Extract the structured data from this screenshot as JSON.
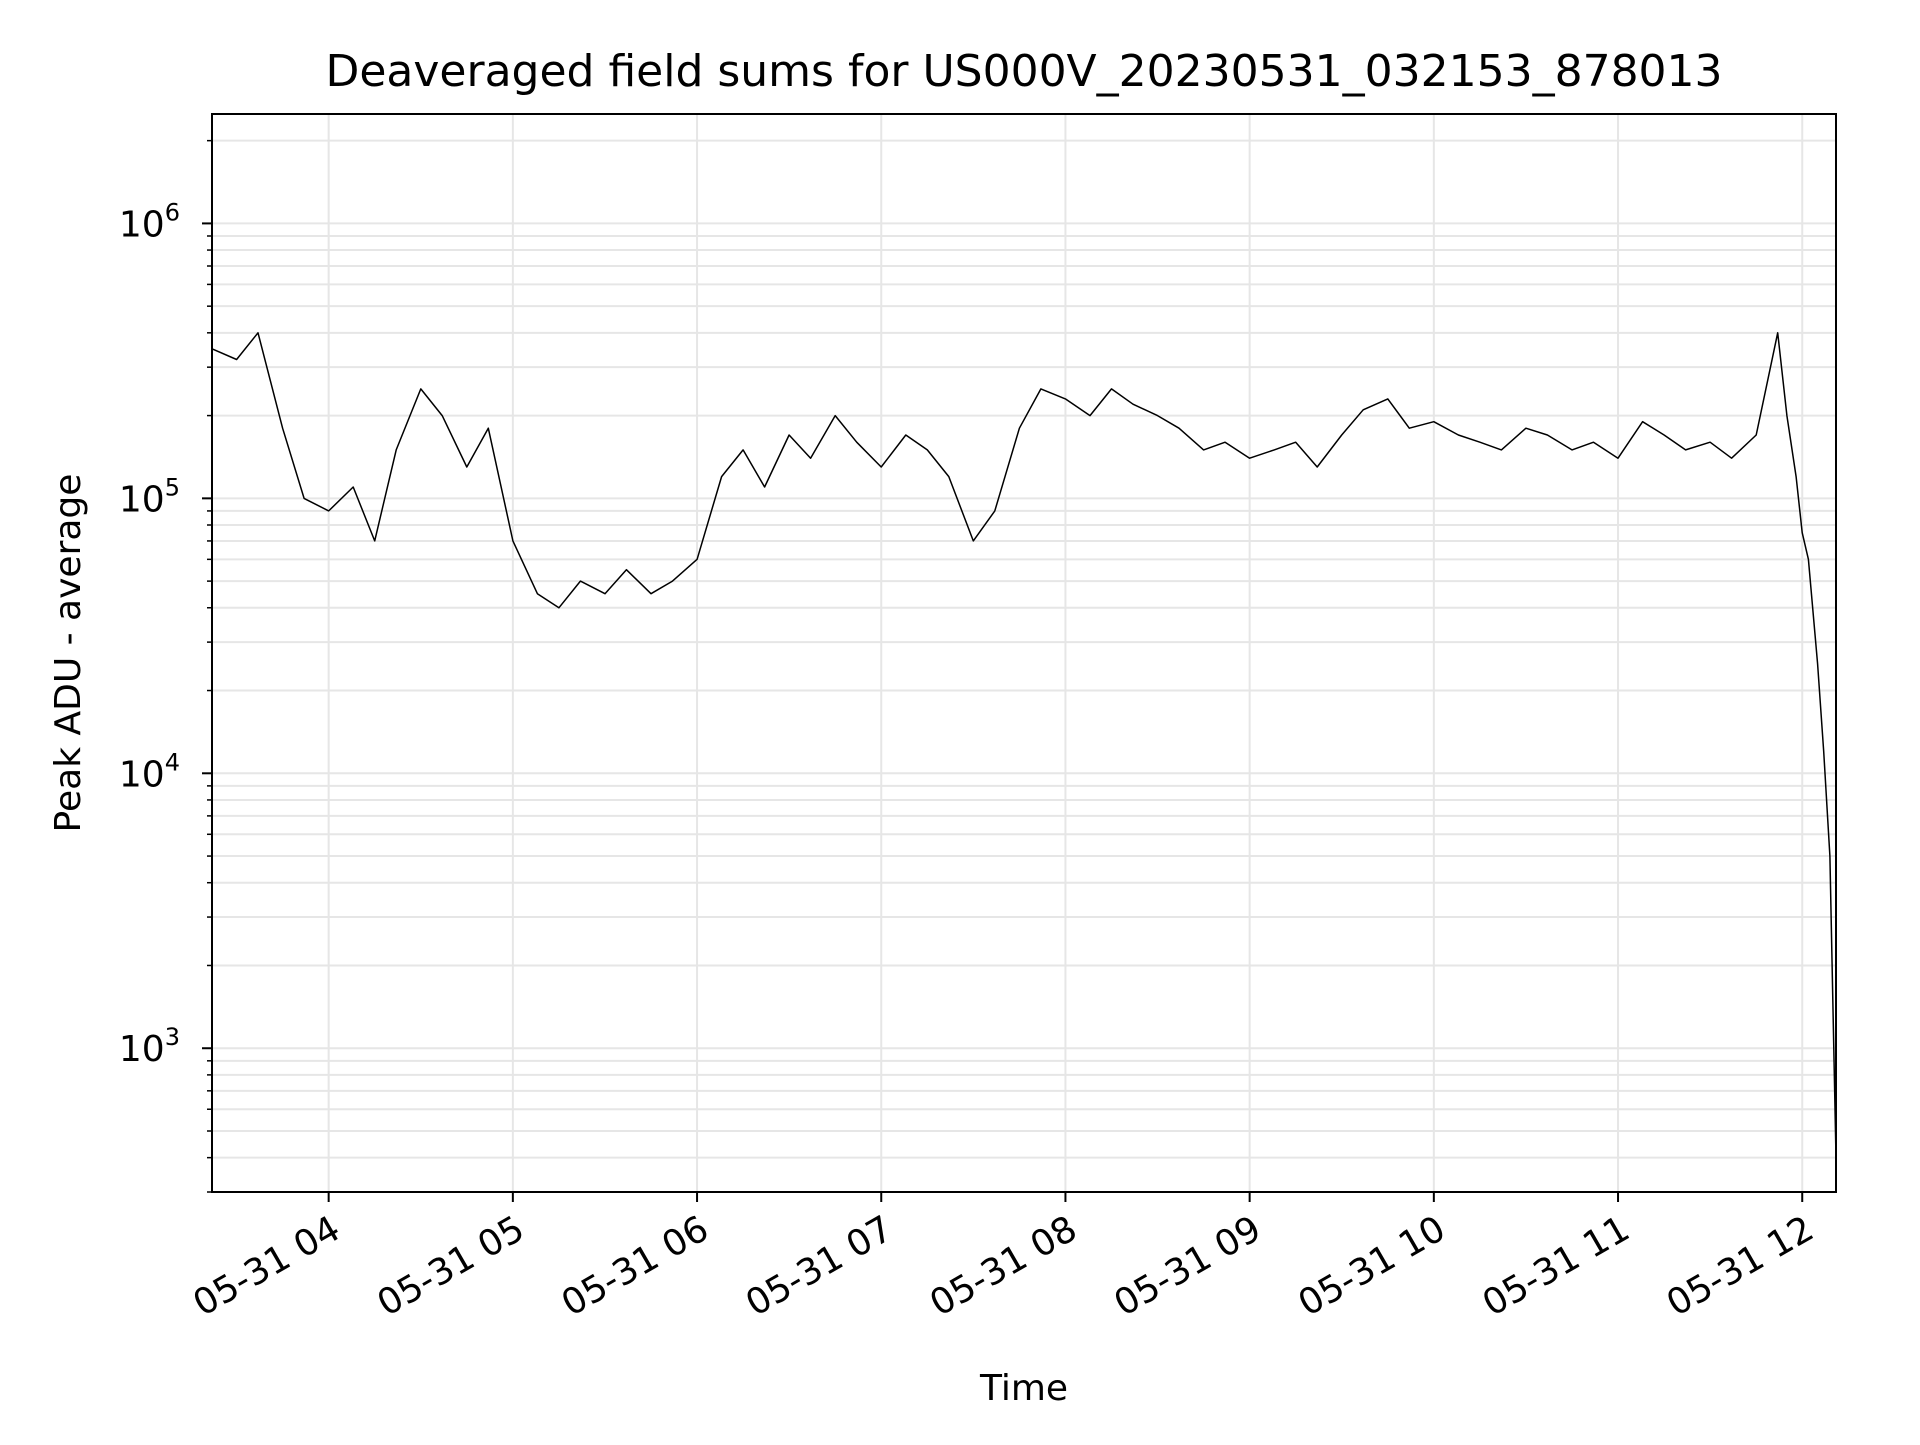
{
  "chart_data": {
    "type": "line",
    "title": "Deaveraged field sums for US000V_20230531_032153_878013",
    "xlabel": "Time",
    "ylabel": "Peak ADU - average",
    "yscale": "log",
    "ylim": [
      300,
      2500000
    ],
    "xlim": [
      "2023-05-31 03:22",
      "2023-05-31 12:11"
    ],
    "grid": true,
    "line_color": "#000000",
    "grid_color": "#e6e6e6",
    "x_ticks": [
      {
        "value": "2023-05-31 04:00",
        "label": "05-31 04"
      },
      {
        "value": "2023-05-31 05:00",
        "label": "05-31 05"
      },
      {
        "value": "2023-05-31 06:00",
        "label": "05-31 06"
      },
      {
        "value": "2023-05-31 07:00",
        "label": "05-31 07"
      },
      {
        "value": "2023-05-31 08:00",
        "label": "05-31 08"
      },
      {
        "value": "2023-05-31 09:00",
        "label": "05-31 09"
      },
      {
        "value": "2023-05-31 10:00",
        "label": "05-31 10"
      },
      {
        "value": "2023-05-31 11:00",
        "label": "05-31 11"
      },
      {
        "value": "2023-05-31 12:00",
        "label": "05-31 12"
      }
    ],
    "y_ticks": [
      {
        "value": 1000,
        "base": "10",
        "exp": "3"
      },
      {
        "value": 10000,
        "base": "10",
        "exp": "4"
      },
      {
        "value": 100000,
        "base": "10",
        "exp": "5"
      },
      {
        "value": 1000000,
        "base": "10",
        "exp": "6"
      }
    ],
    "series": [
      {
        "x": [
          "2023-05-31 03:22",
          "2023-05-31 03:30",
          "2023-05-31 03:37",
          "2023-05-31 03:45",
          "2023-05-31 03:52",
          "2023-05-31 04:00",
          "2023-05-31 04:08",
          "2023-05-31 04:15",
          "2023-05-31 04:22",
          "2023-05-31 04:30",
          "2023-05-31 04:37",
          "2023-05-31 04:45",
          "2023-05-31 04:52",
          "2023-05-31 05:00",
          "2023-05-31 05:08",
          "2023-05-31 05:15",
          "2023-05-31 05:22",
          "2023-05-31 05:30",
          "2023-05-31 05:37",
          "2023-05-31 05:45",
          "2023-05-31 05:52",
          "2023-05-31 06:00",
          "2023-05-31 06:08",
          "2023-05-31 06:15",
          "2023-05-31 06:22",
          "2023-05-31 06:30",
          "2023-05-31 06:37",
          "2023-05-31 06:45",
          "2023-05-31 06:52",
          "2023-05-31 07:00",
          "2023-05-31 07:08",
          "2023-05-31 07:15",
          "2023-05-31 07:22",
          "2023-05-31 07:30",
          "2023-05-31 07:37",
          "2023-05-31 07:45",
          "2023-05-31 07:52",
          "2023-05-31 08:00",
          "2023-05-31 08:08",
          "2023-05-31 08:15",
          "2023-05-31 08:22",
          "2023-05-31 08:30",
          "2023-05-31 08:37",
          "2023-05-31 08:45",
          "2023-05-31 08:52",
          "2023-05-31 09:00",
          "2023-05-31 09:08",
          "2023-05-31 09:15",
          "2023-05-31 09:22",
          "2023-05-31 09:30",
          "2023-05-31 09:37",
          "2023-05-31 09:45",
          "2023-05-31 09:52",
          "2023-05-31 10:00",
          "2023-05-31 10:08",
          "2023-05-31 10:15",
          "2023-05-31 10:22",
          "2023-05-31 10:30",
          "2023-05-31 10:37",
          "2023-05-31 10:45",
          "2023-05-31 10:52",
          "2023-05-31 11:00",
          "2023-05-31 11:08",
          "2023-05-31 11:15",
          "2023-05-31 11:22",
          "2023-05-31 11:30",
          "2023-05-31 11:37",
          "2023-05-31 11:45",
          "2023-05-31 11:52",
          "2023-05-31 11:55",
          "2023-05-31 11:58",
          "2023-05-31 12:00",
          "2023-05-31 12:02",
          "2023-05-31 12:05",
          "2023-05-31 12:07",
          "2023-05-31 12:09",
          "2023-05-31 12:11"
        ],
        "y": [
          350000,
          320000,
          400000,
          180000,
          100000,
          90000,
          110000,
          70000,
          150000,
          250000,
          200000,
          130000,
          180000,
          70000,
          45000,
          40000,
          50000,
          45000,
          55000,
          45000,
          50000,
          60000,
          120000,
          150000,
          110000,
          170000,
          140000,
          200000,
          160000,
          130000,
          170000,
          150000,
          120000,
          70000,
          90000,
          180000,
          250000,
          230000,
          200000,
          250000,
          220000,
          200000,
          180000,
          150000,
          160000,
          140000,
          150000,
          160000,
          130000,
          170000,
          210000,
          230000,
          180000,
          190000,
          170000,
          160000,
          150000,
          180000,
          170000,
          150000,
          160000,
          140000,
          190000,
          170000,
          150000,
          160000,
          140000,
          170000,
          400000,
          200000,
          120000,
          75000,
          60000,
          25000,
          12000,
          5000,
          400
        ]
      }
    ]
  }
}
